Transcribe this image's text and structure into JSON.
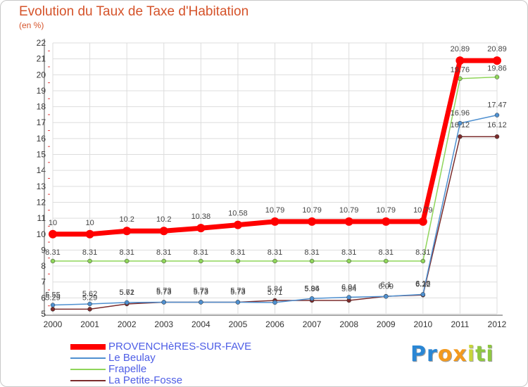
{
  "chart_data": {
    "type": "line",
    "title": "Evolution du Taux de Taxe d'Habitation",
    "unit_label": "(en %)",
    "xlabel": "",
    "ylabel": "",
    "x": [
      "2000",
      "2001",
      "2002",
      "2003",
      "2004",
      "2005",
      "2006",
      "2007",
      "2008",
      "2009",
      "2010",
      "2011",
      "2012"
    ],
    "ylim": [
      5,
      22
    ],
    "yticks": [
      "5",
      "6",
      "7",
      "8",
      "9",
      "10",
      "11",
      "12",
      "13",
      "14",
      "15",
      "16",
      "17",
      "18",
      "19",
      "20",
      "21",
      "22"
    ],
    "grid": true,
    "legend_position": "bottom-left",
    "series": [
      {
        "name": "PROVENCHèRES-SUR-FAVE",
        "color": "#ff0000",
        "values": [
          10,
          10,
          10.2,
          10.2,
          10.38,
          10.58,
          10.79,
          10.79,
          10.79,
          10.79,
          10.79,
          20.89,
          20.89
        ],
        "labels": [
          "10",
          "10",
          "10.2",
          "10.2",
          "10.38",
          "10.58",
          "10.79",
          "10.79",
          "10.79",
          "10.79",
          "10.79",
          "20.89",
          "20.89"
        ]
      },
      {
        "name": "Le Beulay",
        "color": "#4f90d0",
        "values": [
          5.55,
          5.62,
          5.71,
          5.73,
          5.73,
          5.73,
          5.71,
          5.96,
          6.04,
          6.09,
          6.22,
          16.96,
          17.47
        ],
        "labels": [
          "5.55",
          "5.62",
          "5.71",
          "5.73",
          "5.73",
          "5.73",
          "5.71",
          "5.96",
          "6.04",
          "6.09",
          "6.22",
          "16.96",
          "17.47"
        ]
      },
      {
        "name": "Frapelle",
        "color": "#8fd55a",
        "values": [
          8.31,
          8.31,
          8.31,
          8.31,
          8.31,
          8.31,
          8.31,
          8.31,
          8.31,
          8.31,
          8.31,
          19.76,
          19.86
        ],
        "labels": [
          "8.31",
          "8.31",
          "8.31",
          "8.31",
          "8.31",
          "8.31",
          "8.31",
          "8.31",
          "8.31",
          "8.31",
          "8.31",
          "19.76",
          "19.86"
        ]
      },
      {
        "name": "La Petite-Fosse",
        "color": "#7b2c2c",
        "values": [
          5.29,
          5.29,
          5.62,
          5.73,
          5.73,
          5.73,
          5.84,
          5.84,
          5.84,
          6.1,
          6.18,
          16.12,
          16.12
        ],
        "labels": [
          "5.29",
          "5.29",
          "5.62",
          "5.73",
          "5.73",
          "5.73",
          "5.84",
          "5.84",
          "5.84",
          "6.1",
          "6.18",
          "16.12",
          "16.12"
        ]
      }
    ]
  },
  "brand": {
    "name": "Proxiti",
    "letters": [
      "P",
      "r",
      "o",
      "x",
      "i",
      "t",
      "i"
    ],
    "colors": [
      "#2a86d4",
      "#2a86d4",
      "#f39a1e",
      "#f39a1e",
      "#c9d63a",
      "#8fc742",
      "#8fc742"
    ]
  }
}
